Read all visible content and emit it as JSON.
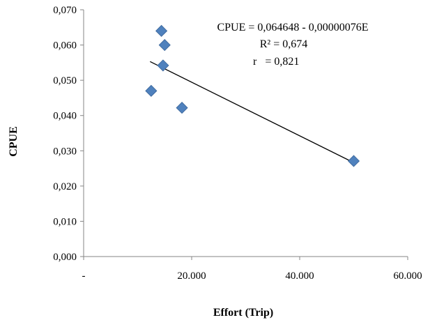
{
  "chart_data": {
    "type": "scatter",
    "xlabel": "Effort (Trip)",
    "ylabel": "CPUE",
    "xlim": [
      0,
      60000
    ],
    "ylim": [
      0,
      0.07
    ],
    "x_ticks": [
      {
        "value": 0,
        "label": "-"
      },
      {
        "value": 20000,
        "label": "20.000"
      },
      {
        "value": 40000,
        "label": "40.000"
      },
      {
        "value": 60000,
        "label": "60.000"
      }
    ],
    "y_ticks": [
      {
        "value": 0,
        "label": "0,000"
      },
      {
        "value": 0.01,
        "label": "0,010"
      },
      {
        "value": 0.02,
        "label": "0,020"
      },
      {
        "value": 0.03,
        "label": "0,030"
      },
      {
        "value": 0.04,
        "label": "0,040"
      },
      {
        "value": 0.05,
        "label": "0,050"
      },
      {
        "value": 0.06,
        "label": "0,060"
      },
      {
        "value": 0.07,
        "label": "0,070"
      }
    ],
    "points": [
      {
        "x": 14400,
        "y": 0.064
      },
      {
        "x": 15000,
        "y": 0.06
      },
      {
        "x": 14700,
        "y": 0.0542
      },
      {
        "x": 12500,
        "y": 0.047
      },
      {
        "x": 18200,
        "y": 0.0422
      },
      {
        "x": 50000,
        "y": 0.0271
      }
    ],
    "trendline": {
      "x_start": 12300,
      "x_end": 50000,
      "intercept": 0.064648,
      "slope": -7.6e-07
    },
    "marker_color": "#4F81BD",
    "annotations": [
      "CPUE = 0,064648 - 0,00000076E",
      "R² = 0,674",
      "r   = 0,821"
    ],
    "grid": false,
    "legend": "none"
  }
}
